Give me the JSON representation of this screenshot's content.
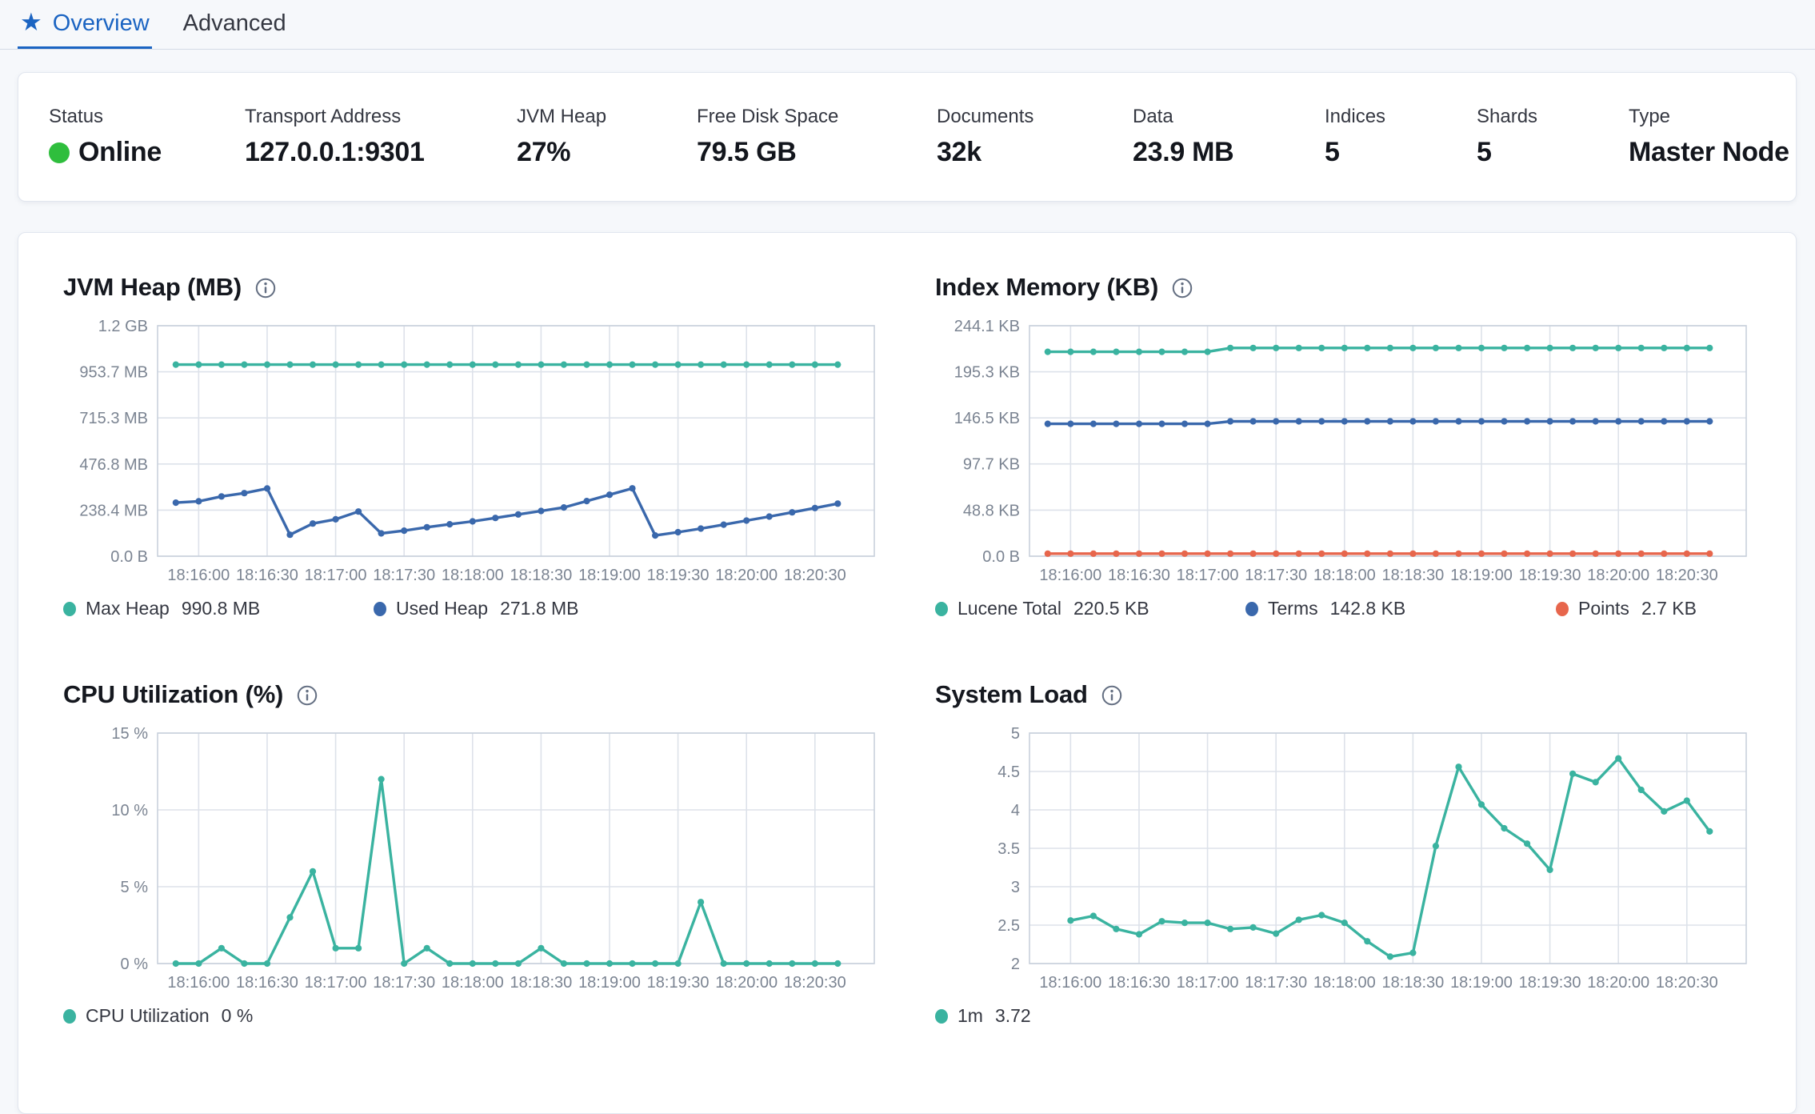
{
  "tabs": [
    {
      "label": "Overview",
      "active": true,
      "icon": "star"
    },
    {
      "label": "Advanced",
      "active": false
    }
  ],
  "status_bar": {
    "items": [
      {
        "label": "Status",
        "value": "Online",
        "has_dot": true
      },
      {
        "label": "Transport Address",
        "value": "127.0.0.1:9301"
      },
      {
        "label": "JVM Heap",
        "value": "27%"
      },
      {
        "label": "Free Disk Space",
        "value": "79.5 GB"
      },
      {
        "label": "Documents",
        "value": "32k"
      },
      {
        "label": "Data",
        "value": "23.9 MB"
      },
      {
        "label": "Indices",
        "value": "5"
      },
      {
        "label": "Shards",
        "value": "5"
      },
      {
        "label": "Type",
        "value": "Master Node"
      }
    ]
  },
  "colors": {
    "primary_blue": "#1b64c2",
    "teal": "#3ab3a0",
    "series_blue": "#3a68ac",
    "orange": "#e7664c",
    "status_green": "#2fbe3d",
    "axis_text": "#7b8492",
    "grid_line": "#dde2ea",
    "plot_border": "#c9d1dc"
  },
  "chart_data": [
    {
      "id": "jvm-heap",
      "type": "line",
      "title": "JVM Heap (MB)",
      "x_ticks": [
        "18:16:00",
        "18:16:30",
        "18:17:00",
        "18:17:30",
        "18:18:00",
        "18:18:30",
        "18:19:00",
        "18:19:30",
        "18:20:00",
        "18:20:30"
      ],
      "y_ticks": [
        {
          "label": "1.2 GB",
          "value": 1192.1
        },
        {
          "label": "953.7 MB",
          "value": 953.7
        },
        {
          "label": "715.3 MB",
          "value": 715.3
        },
        {
          "label": "476.8 MB",
          "value": 476.8
        },
        {
          "label": "238.4 MB",
          "value": 238.4
        },
        {
          "label": "0.0 B",
          "value": 0
        }
      ],
      "ylim": [
        0,
        1192.1
      ],
      "series": [
        {
          "name": "Max Heap",
          "value_label": "990.8 MB",
          "color": "#3ab3a0",
          "values": [
            990.8,
            990.8,
            990.8,
            990.8,
            990.8,
            990.8,
            990.8,
            990.8,
            990.8,
            990.8,
            990.8,
            990.8,
            990.8,
            990.8,
            990.8,
            990.8,
            990.8,
            990.8,
            990.8,
            990.8,
            990.8,
            990.8,
            990.8,
            990.8,
            990.8,
            990.8,
            990.8,
            990.8,
            990.8,
            990.8
          ]
        },
        {
          "name": "Used Heap",
          "value_label": "271.8 MB",
          "color": "#3a68ac",
          "values": [
            277,
            284,
            309,
            326,
            350,
            111,
            169,
            191,
            231,
            118,
            132,
            150,
            165,
            180,
            198,
            216,
            234,
            252,
            285,
            318,
            351,
            107,
            124,
            143,
            163,
            184,
            205,
            227,
            249,
            271.8
          ]
        }
      ]
    },
    {
      "id": "index-memory",
      "type": "line",
      "title": "Index Memory (KB)",
      "x_ticks": [
        "18:16:00",
        "18:16:30",
        "18:17:00",
        "18:17:30",
        "18:18:00",
        "18:18:30",
        "18:19:00",
        "18:19:30",
        "18:20:00",
        "18:20:30"
      ],
      "y_ticks": [
        {
          "label": "244.1 KB",
          "value": 244.1
        },
        {
          "label": "195.3 KB",
          "value": 195.3
        },
        {
          "label": "146.5 KB",
          "value": 146.5
        },
        {
          "label": "97.7 KB",
          "value": 97.7
        },
        {
          "label": "48.8 KB",
          "value": 48.8
        },
        {
          "label": "0.0 B",
          "value": 0
        }
      ],
      "ylim": [
        0,
        244.1
      ],
      "series": [
        {
          "name": "Lucene Total",
          "value_label": "220.5 KB",
          "color": "#3ab3a0",
          "values": [
            216.5,
            216.5,
            216.5,
            216.5,
            216.5,
            216.5,
            216.5,
            216.5,
            220.5,
            220.5,
            220.5,
            220.5,
            220.5,
            220.5,
            220.5,
            220.5,
            220.5,
            220.5,
            220.5,
            220.5,
            220.5,
            220.5,
            220.5,
            220.5,
            220.5,
            220.5,
            220.5,
            220.5,
            220.5,
            220.5
          ]
        },
        {
          "name": "Terms",
          "value_label": "142.8 KB",
          "color": "#3a68ac",
          "values": [
            140.2,
            140.2,
            140.2,
            140.2,
            140.2,
            140.2,
            140.2,
            140.2,
            142.8,
            142.8,
            142.8,
            142.8,
            142.8,
            142.8,
            142.8,
            142.8,
            142.8,
            142.8,
            142.8,
            142.8,
            142.8,
            142.8,
            142.8,
            142.8,
            142.8,
            142.8,
            142.8,
            142.8,
            142.8,
            142.8
          ]
        },
        {
          "name": "Points",
          "value_label": "2.7 KB",
          "color": "#e7664c",
          "values": [
            2.7,
            2.7,
            2.7,
            2.7,
            2.7,
            2.7,
            2.7,
            2.7,
            2.7,
            2.7,
            2.7,
            2.7,
            2.7,
            2.7,
            2.7,
            2.7,
            2.7,
            2.7,
            2.7,
            2.7,
            2.7,
            2.7,
            2.7,
            2.7,
            2.7,
            2.7,
            2.7,
            2.7,
            2.7,
            2.7
          ]
        }
      ]
    },
    {
      "id": "cpu-utilization",
      "type": "line",
      "title": "CPU Utilization (%)",
      "x_ticks": [
        "18:16:00",
        "18:16:30",
        "18:17:00",
        "18:17:30",
        "18:18:00",
        "18:18:30",
        "18:19:00",
        "18:19:30",
        "18:20:00",
        "18:20:30"
      ],
      "y_ticks": [
        {
          "label": "15 %",
          "value": 15
        },
        {
          "label": "10 %",
          "value": 10
        },
        {
          "label": "5 %",
          "value": 5
        },
        {
          "label": "0 %",
          "value": 0
        }
      ],
      "ylim": [
        0,
        15
      ],
      "series": [
        {
          "name": "CPU Utilization",
          "value_label": "0 %",
          "color": "#3ab3a0",
          "values": [
            0,
            0,
            1,
            0,
            0,
            3,
            6,
            1,
            1,
            12,
            0,
            1,
            0,
            0,
            0,
            0,
            1,
            0,
            0,
            0,
            0,
            0,
            0,
            4,
            0,
            0,
            0,
            0,
            0,
            0
          ]
        }
      ]
    },
    {
      "id": "system-load",
      "type": "line",
      "title": "System Load",
      "x_ticks": [
        "18:16:00",
        "18:16:30",
        "18:17:00",
        "18:17:30",
        "18:18:00",
        "18:18:30",
        "18:19:00",
        "18:19:30",
        "18:20:00",
        "18:20:30"
      ],
      "y_ticks": [
        {
          "label": "5",
          "value": 5
        },
        {
          "label": "4.5",
          "value": 4.5
        },
        {
          "label": "4",
          "value": 4
        },
        {
          "label": "3.5",
          "value": 3.5
        },
        {
          "label": "3",
          "value": 3
        },
        {
          "label": "2.5",
          "value": 2.5
        },
        {
          "label": "2",
          "value": 2
        }
      ],
      "ylim": [
        2,
        5
      ],
      "series": [
        {
          "name": "1m",
          "value_label": "3.72",
          "color": "#3ab3a0",
          "start_index": 1,
          "values": [
            2.56,
            2.62,
            2.45,
            2.38,
            2.55,
            2.53,
            2.53,
            2.45,
            2.47,
            2.39,
            2.57,
            2.63,
            2.53,
            2.29,
            2.09,
            2.14,
            3.53,
            4.56,
            4.07,
            3.76,
            3.56,
            3.22,
            4.47,
            4.36,
            4.67,
            4.26,
            3.98,
            4.12,
            3.72
          ]
        }
      ]
    }
  ]
}
